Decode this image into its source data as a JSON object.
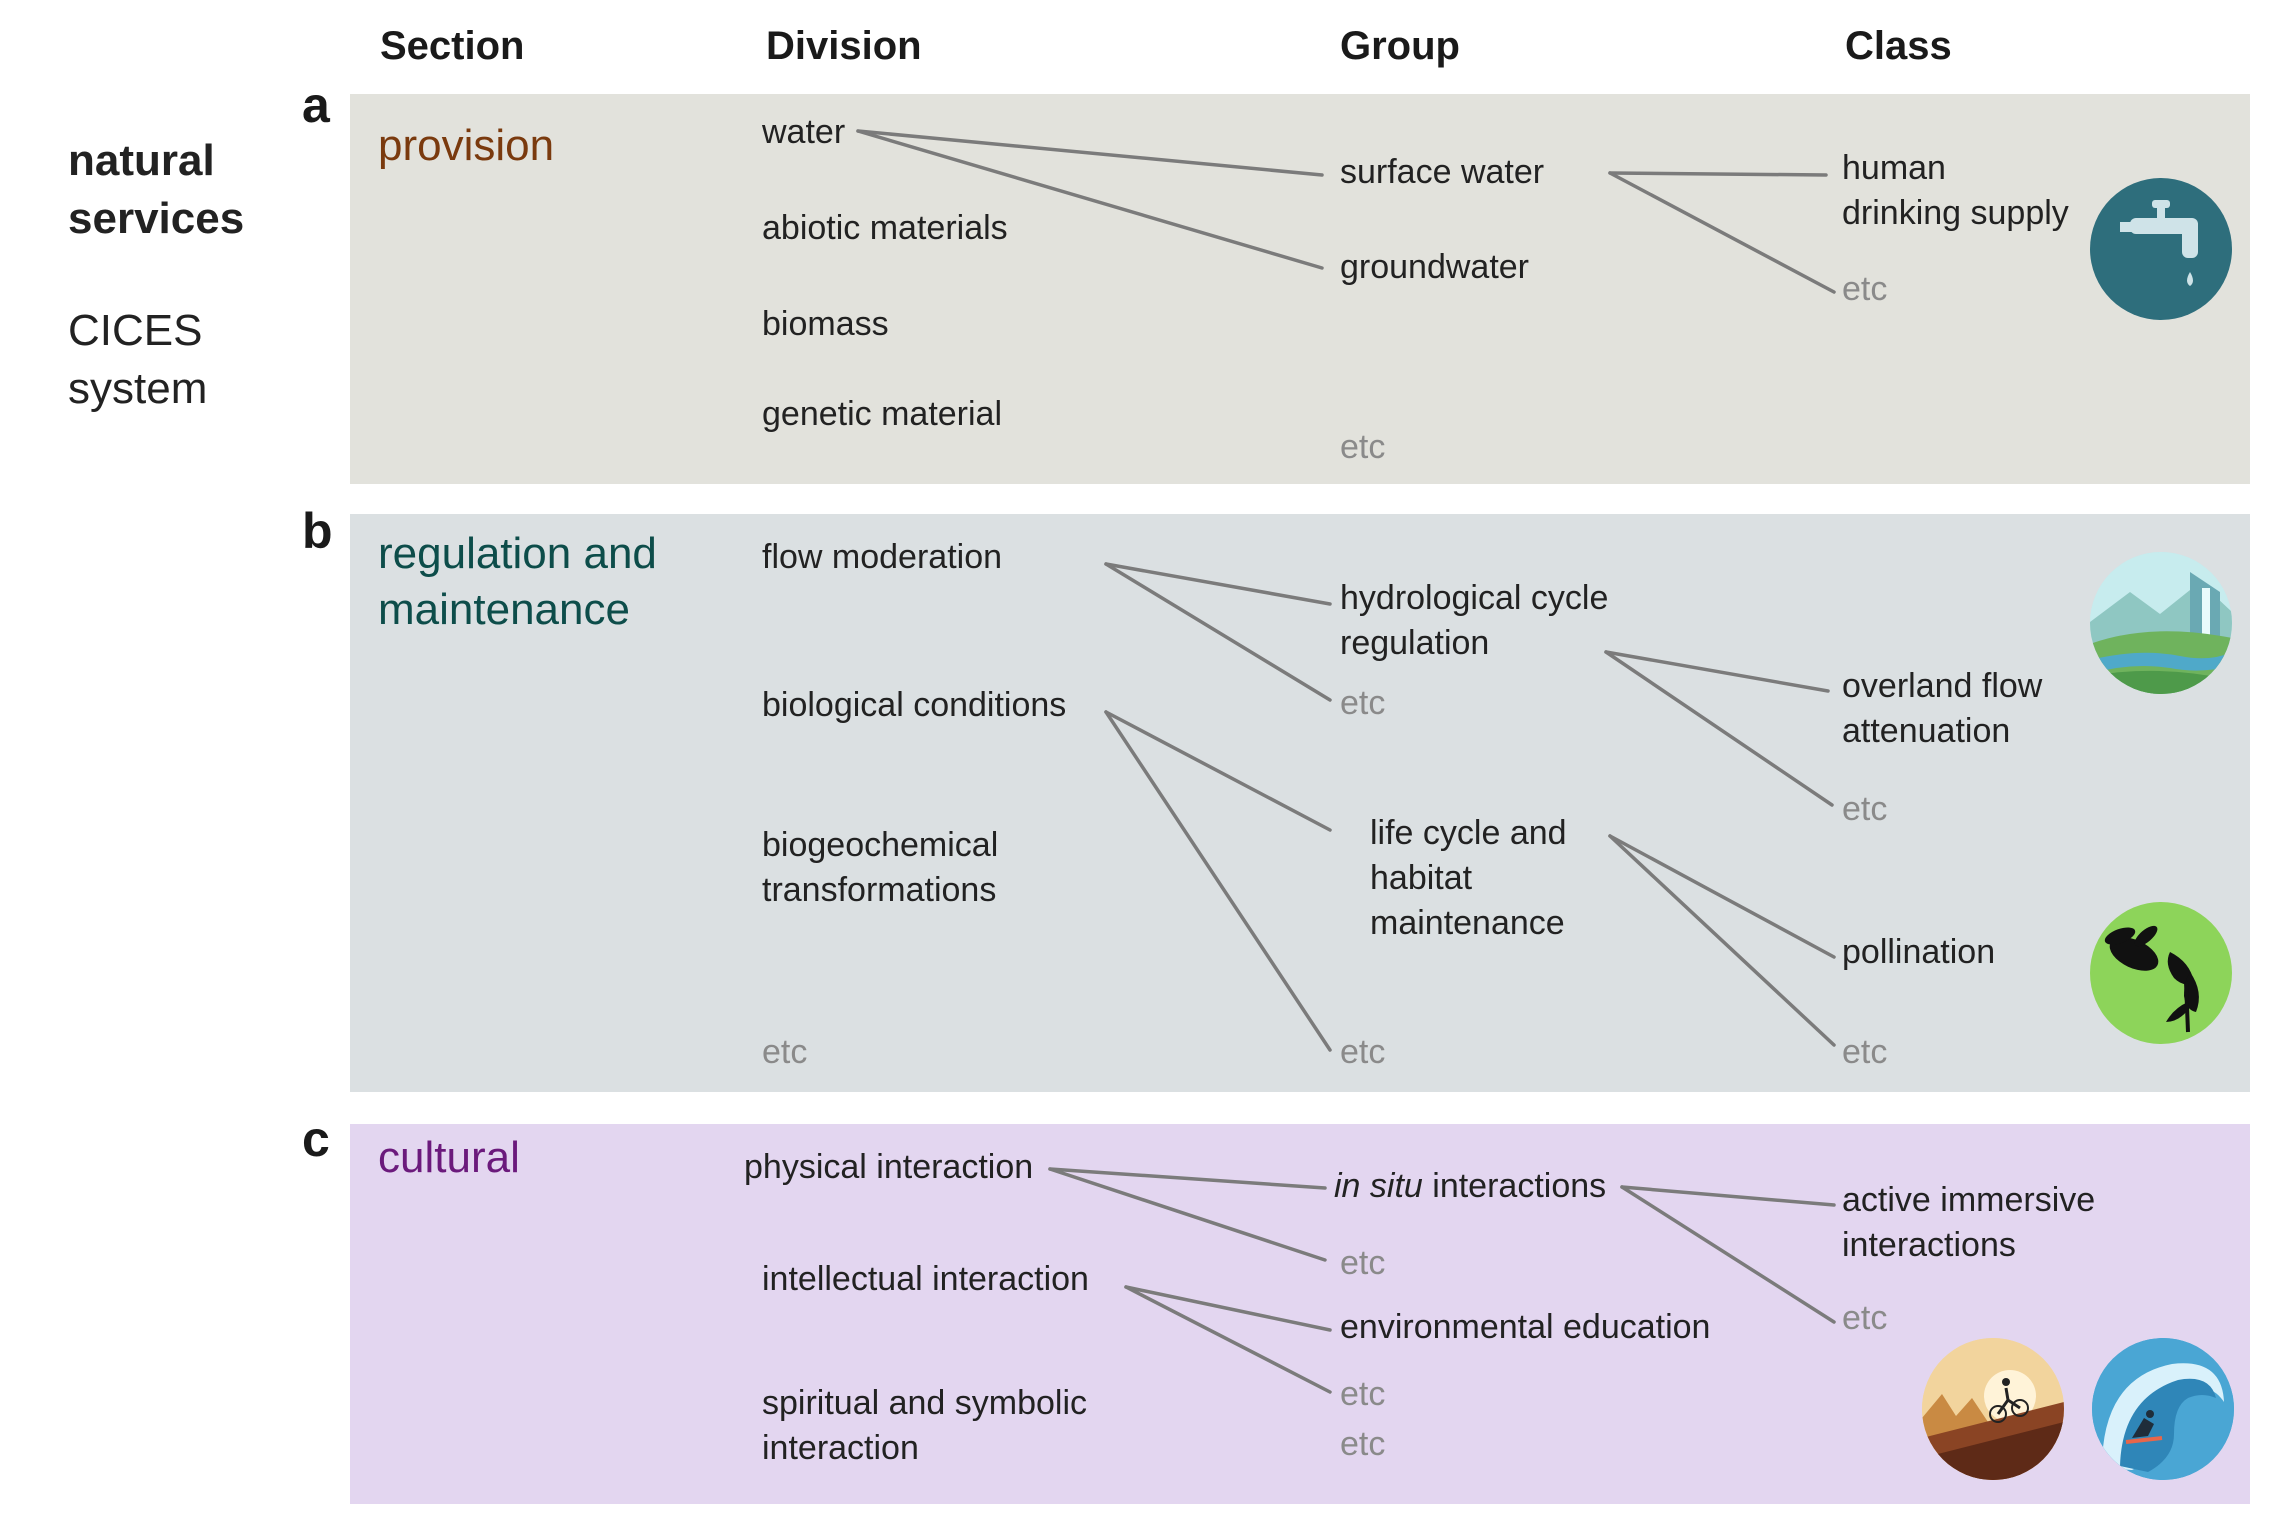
{
  "headers": {
    "section": "Section",
    "division": "Division",
    "group": "Group",
    "class": "Class"
  },
  "left_title": {
    "line1": "natural",
    "line2": "services",
    "line3": "CICES",
    "line4": "system"
  },
  "panels": {
    "a": {
      "letter": "a",
      "section": "provision",
      "section_color": "#7a3a0e",
      "bg": "#e2e2dc",
      "divisions": [
        "water",
        "abiotic materials",
        "biomass",
        "genetic material"
      ],
      "groups": [
        "surface water",
        "groundwater",
        "etc"
      ],
      "classes": [
        "human",
        "drinking supply",
        "etc"
      ]
    },
    "b": {
      "letter": "b",
      "section_line1": "regulation and",
      "section_line2": "maintenance",
      "section_color": "#0d4d4a",
      "bg": "#dbe0e2",
      "divisions": [
        "flow moderation",
        "biological conditions",
        "biogeochemical",
        "transformations",
        "etc"
      ],
      "groups": [
        "hydrological cycle",
        "regulation",
        "etc",
        "life cycle and",
        "habitat",
        "maintenance",
        "etc"
      ],
      "classes": [
        "overland flow",
        "attenuation",
        "etc",
        "pollination",
        "etc"
      ]
    },
    "c": {
      "letter": "c",
      "section": "cultural",
      "section_color": "#6b1a7c",
      "bg": "#e3d6f0",
      "divisions": [
        "physical interaction",
        "intellectual interaction",
        "spiritual and symbolic",
        "interaction"
      ],
      "groups": {
        "in_situ_italic": "in situ",
        "in_situ_rest": " interactions",
        "etc1": "etc",
        "env_edu": "environmental education",
        "etc2": "etc",
        "etc3": "etc"
      },
      "classes": [
        "active immersive",
        "interactions",
        "etc"
      ]
    }
  },
  "icons": [
    "water-tap-icon",
    "river-landscape-icon",
    "bee-pollination-icon",
    "cyclist-sunset-icon",
    "surfer-wave-icon"
  ],
  "colors": {
    "link": "#7b7b7b",
    "etc": "#8a8a8a"
  }
}
